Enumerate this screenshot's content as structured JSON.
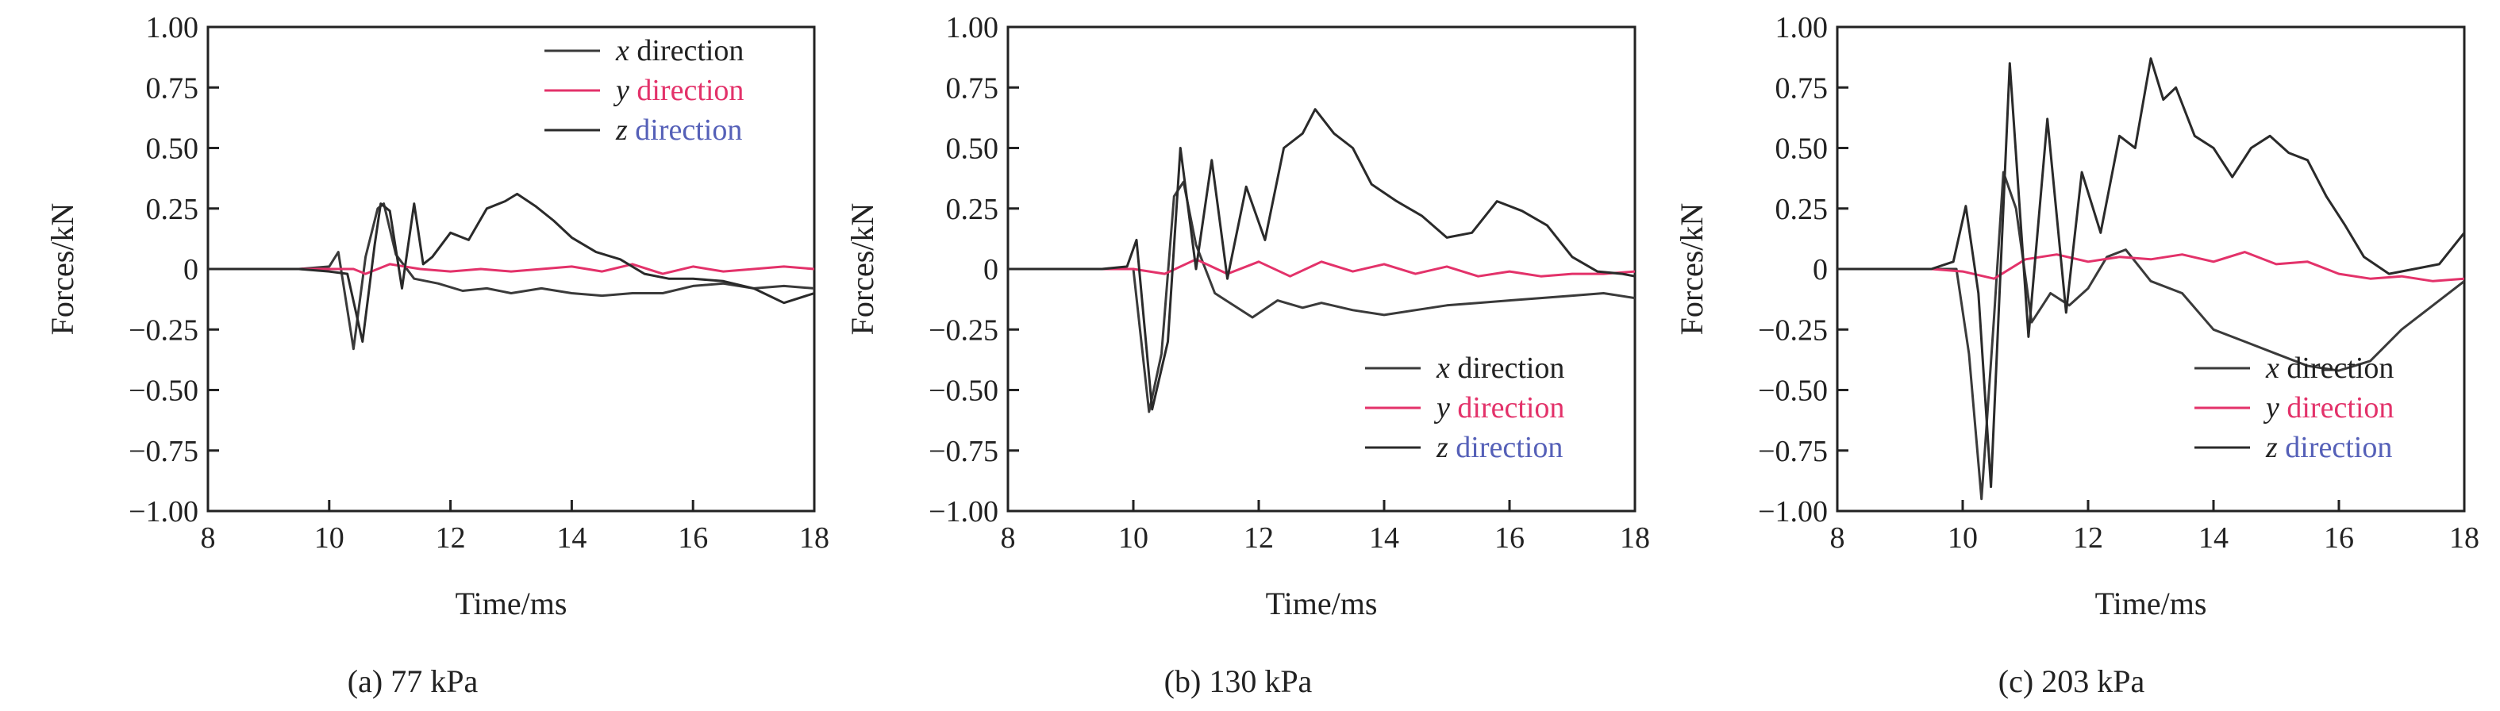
{
  "figure": {
    "panels": [
      {
        "caption": "(a) 77 kPa"
      },
      {
        "caption": "(b) 130 kPa"
      },
      {
        "caption": "(c) 203 kPa"
      }
    ]
  },
  "colors": {
    "x_series": "#3a3a3a",
    "y_series": "#e3326a",
    "z_series": "#2a2a2a",
    "z_series_accent": "#5560b8",
    "axis": "#222222"
  },
  "chart_data": [
    {
      "type": "line",
      "xlabel": "Time/ms",
      "ylabel": "Forces/kN",
      "xlim": [
        8,
        18
      ],
      "ylim": [
        -1.0,
        1.0
      ],
      "xticks": [
        "8",
        "10",
        "12",
        "14",
        "16",
        "18"
      ],
      "yticks": [
        "1.00",
        "0.75",
        "0.50",
        "0.25",
        "0",
        "−0.25",
        "−0.50",
        "−0.75",
        "−1.00"
      ],
      "grid": false,
      "legend_position": "top-right",
      "legend": [
        {
          "var": "x",
          "text": "direction"
        },
        {
          "var": "y",
          "text": "direction"
        },
        {
          "var": "z",
          "text": "direction"
        }
      ],
      "series": [
        {
          "key": "x",
          "x": [
            8,
            9.5,
            10.0,
            10.15,
            10.4,
            10.6,
            10.8,
            10.9,
            11.1,
            11.4,
            11.8,
            12.2,
            12.6,
            13.0,
            13.5,
            14.0,
            14.5,
            15.0,
            15.5,
            16.0,
            16.5,
            17.0,
            17.5,
            18.0
          ],
          "values": [
            0,
            0,
            0.01,
            0.07,
            -0.33,
            0.05,
            0.25,
            0.27,
            0.06,
            -0.04,
            -0.06,
            -0.09,
            -0.08,
            -0.1,
            -0.08,
            -0.1,
            -0.11,
            -0.1,
            -0.1,
            -0.07,
            -0.06,
            -0.08,
            -0.07,
            -0.08
          ]
        },
        {
          "key": "y",
          "x": [
            8,
            9.5,
            10.0,
            10.4,
            10.6,
            11.0,
            11.5,
            12.0,
            12.5,
            13.0,
            13.5,
            14.0,
            14.5,
            15.0,
            15.5,
            16.0,
            16.5,
            17.0,
            17.5,
            18.0
          ],
          "values": [
            0,
            0,
            0,
            0.0,
            -0.02,
            0.02,
            0.0,
            -0.01,
            0.0,
            -0.01,
            0.0,
            0.01,
            -0.01,
            0.02,
            -0.02,
            0.01,
            -0.01,
            0.0,
            0.01,
            0.0
          ]
        },
        {
          "key": "z",
          "x": [
            8,
            9.5,
            10.0,
            10.3,
            10.55,
            10.75,
            10.85,
            11.0,
            11.2,
            11.4,
            11.55,
            11.7,
            12.0,
            12.3,
            12.6,
            12.9,
            13.1,
            13.4,
            13.7,
            14.0,
            14.4,
            14.8,
            15.2,
            15.6,
            16.0,
            16.5,
            17.0,
            17.5,
            18.0
          ],
          "values": [
            0,
            0,
            -0.01,
            -0.02,
            -0.3,
            0.1,
            0.27,
            0.24,
            -0.08,
            0.27,
            0.02,
            0.05,
            0.15,
            0.12,
            0.25,
            0.28,
            0.31,
            0.26,
            0.2,
            0.13,
            0.07,
            0.04,
            -0.02,
            -0.04,
            -0.04,
            -0.05,
            -0.08,
            -0.14,
            -0.1
          ]
        }
      ]
    },
    {
      "type": "line",
      "xlabel": "Time/ms",
      "ylabel": "Forces/kN",
      "xlim": [
        8,
        18
      ],
      "ylim": [
        -1.0,
        1.0
      ],
      "xticks": [
        "8",
        "10",
        "12",
        "14",
        "16",
        "18"
      ],
      "yticks": [
        "1.00",
        "0.75",
        "0.50",
        "0.25",
        "0",
        "−0.25",
        "−0.50",
        "−0.75",
        "−1.00"
      ],
      "grid": false,
      "legend_position": "bottom-right",
      "legend": [
        {
          "var": "x",
          "text": "direction"
        },
        {
          "var": "y",
          "text": "direction"
        },
        {
          "var": "z",
          "text": "direction"
        }
      ],
      "series": [
        {
          "key": "x",
          "x": [
            8,
            9.5,
            10.0,
            10.25,
            10.45,
            10.65,
            10.8,
            11.0,
            11.3,
            11.6,
            11.9,
            12.3,
            12.7,
            13.0,
            13.5,
            14.0,
            14.5,
            15.0,
            15.5,
            16.0,
            16.5,
            17.0,
            17.5,
            18.0
          ],
          "values": [
            0,
            0,
            0.0,
            -0.59,
            -0.35,
            0.3,
            0.36,
            0.1,
            -0.1,
            -0.15,
            -0.2,
            -0.13,
            -0.16,
            -0.14,
            -0.17,
            -0.19,
            -0.17,
            -0.15,
            -0.14,
            -0.13,
            -0.12,
            -0.11,
            -0.1,
            -0.12
          ]
        },
        {
          "key": "y",
          "x": [
            8,
            9.5,
            10.0,
            10.5,
            11.0,
            11.5,
            12.0,
            12.5,
            13.0,
            13.5,
            14.0,
            14.5,
            15.0,
            15.5,
            16.0,
            16.5,
            17.0,
            17.5,
            18.0
          ],
          "values": [
            0,
            0,
            0.0,
            -0.02,
            0.04,
            -0.02,
            0.03,
            -0.03,
            0.03,
            -0.01,
            0.02,
            -0.02,
            0.01,
            -0.03,
            -0.01,
            -0.03,
            -0.02,
            -0.02,
            -0.01
          ]
        },
        {
          "key": "z",
          "x": [
            8,
            9.5,
            9.9,
            10.05,
            10.3,
            10.55,
            10.75,
            11.0,
            11.25,
            11.5,
            11.8,
            12.1,
            12.4,
            12.7,
            12.9,
            13.2,
            13.5,
            13.8,
            14.2,
            14.6,
            15.0,
            15.4,
            15.8,
            16.2,
            16.6,
            17.0,
            17.4,
            17.8,
            18.0
          ],
          "values": [
            0,
            0,
            0.01,
            0.12,
            -0.58,
            -0.3,
            0.5,
            0.0,
            0.45,
            -0.04,
            0.34,
            0.12,
            0.5,
            0.56,
            0.66,
            0.56,
            0.5,
            0.35,
            0.28,
            0.22,
            0.13,
            0.15,
            0.28,
            0.24,
            0.18,
            0.05,
            -0.01,
            -0.02,
            -0.03
          ]
        }
      ]
    },
    {
      "type": "line",
      "xlabel": "Time/ms",
      "ylabel": "Forces/kN",
      "xlim": [
        8,
        18
      ],
      "ylim": [
        -1.0,
        1.0
      ],
      "xticks": [
        "8",
        "10",
        "12",
        "14",
        "16",
        "18"
      ],
      "yticks": [
        "1.00",
        "0.75",
        "0.50",
        "0.25",
        "0",
        "−0.25",
        "−0.50",
        "−0.75",
        "−1.00"
      ],
      "grid": false,
      "legend_position": "bottom-right",
      "legend": [
        {
          "var": "x",
          "text": "direction"
        },
        {
          "var": "y",
          "text": "direction"
        },
        {
          "var": "z",
          "text": "direction"
        }
      ],
      "series": [
        {
          "key": "x",
          "x": [
            8,
            9.5,
            9.9,
            10.1,
            10.3,
            10.5,
            10.65,
            10.85,
            11.1,
            11.4,
            11.7,
            12.0,
            12.3,
            12.6,
            13.0,
            13.5,
            14.0,
            14.5,
            15.0,
            15.5,
            16.0,
            16.5,
            17.0,
            17.5,
            18.0
          ],
          "values": [
            0,
            0,
            0.0,
            -0.35,
            -0.95,
            -0.2,
            0.4,
            0.25,
            -0.22,
            -0.1,
            -0.15,
            -0.08,
            0.05,
            0.08,
            -0.05,
            -0.1,
            -0.25,
            -0.3,
            -0.35,
            -0.4,
            -0.42,
            -0.38,
            -0.25,
            -0.15,
            -0.05
          ]
        },
        {
          "key": "y",
          "x": [
            8,
            9.5,
            10.0,
            10.5,
            11.0,
            11.5,
            12.0,
            12.5,
            13.0,
            13.5,
            14.0,
            14.5,
            15.0,
            15.5,
            16.0,
            16.5,
            17.0,
            17.5,
            18.0
          ],
          "values": [
            0,
            0,
            -0.01,
            -0.04,
            0.04,
            0.06,
            0.03,
            0.05,
            0.04,
            0.06,
            0.03,
            0.07,
            0.02,
            0.03,
            -0.02,
            -0.04,
            -0.03,
            -0.05,
            -0.04
          ]
        },
        {
          "key": "z",
          "x": [
            8,
            9.5,
            9.85,
            10.05,
            10.25,
            10.45,
            10.75,
            11.05,
            11.35,
            11.65,
            11.9,
            12.2,
            12.5,
            12.75,
            13.0,
            13.2,
            13.4,
            13.7,
            14.0,
            14.3,
            14.6,
            14.9,
            15.2,
            15.5,
            15.8,
            16.1,
            16.4,
            16.8,
            17.2,
            17.6,
            18.0
          ],
          "values": [
            0,
            0,
            0.03,
            0.26,
            -0.1,
            -0.9,
            0.85,
            -0.28,
            0.62,
            -0.18,
            0.4,
            0.15,
            0.55,
            0.5,
            0.87,
            0.7,
            0.75,
            0.55,
            0.5,
            0.38,
            0.5,
            0.55,
            0.48,
            0.45,
            0.3,
            0.18,
            0.05,
            -0.02,
            0.0,
            0.02,
            0.15
          ]
        }
      ]
    }
  ]
}
